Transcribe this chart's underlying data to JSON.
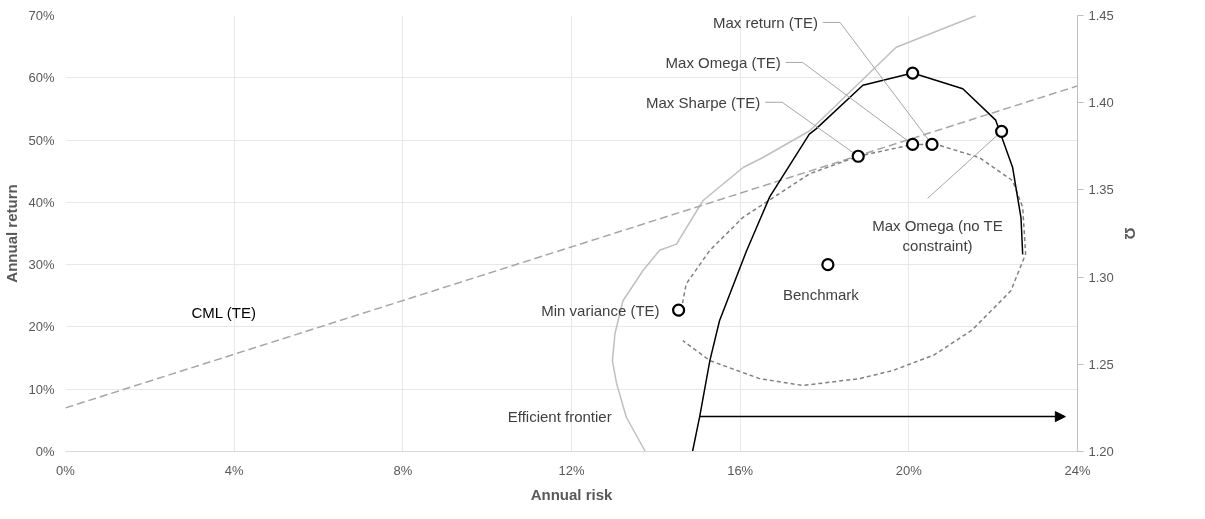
{
  "chart_data": {
    "type": "line",
    "xlabel": "Annual risk",
    "ylabel": "Annual return",
    "y2label": "Ω",
    "xlim": [
      0,
      24
    ],
    "ylim": [
      0,
      70
    ],
    "y2lim": [
      1.2,
      1.45
    ],
    "xticks": [
      {
        "value": 0,
        "label": "0%"
      },
      {
        "value": 4,
        "label": "4%"
      },
      {
        "value": 8,
        "label": "8%"
      },
      {
        "value": 12,
        "label": "12%"
      },
      {
        "value": 16,
        "label": "16%"
      },
      {
        "value": 20,
        "label": "20%"
      },
      {
        "value": 24,
        "label": "24%"
      }
    ],
    "yticks": [
      {
        "value": 0,
        "label": "0%"
      },
      {
        "value": 10,
        "label": "10%"
      },
      {
        "value": 20,
        "label": "20%"
      },
      {
        "value": 30,
        "label": "30%"
      },
      {
        "value": 40,
        "label": "40%"
      },
      {
        "value": 50,
        "label": "50%"
      },
      {
        "value": 60,
        "label": "60%"
      },
      {
        "value": 70,
        "label": "70%"
      }
    ],
    "y2ticks": [
      {
        "value": 1.2,
        "label": "1.20"
      },
      {
        "value": 1.25,
        "label": "1.25"
      },
      {
        "value": 1.3,
        "label": "1.30"
      },
      {
        "value": 1.35,
        "label": "1.35"
      },
      {
        "value": 1.4,
        "label": "1.40"
      },
      {
        "value": 1.45,
        "label": "1.45"
      }
    ],
    "grid": true,
    "legend": false,
    "series": [
      {
        "color": "#bfbfbf",
        "x": [
          13.75,
          13.3,
          13.07,
          12.97,
          13.03,
          13.22,
          13.7,
          14.09,
          14.49,
          15.12,
          16.07,
          16.54,
          17.65,
          19.7,
          21.6
        ],
        "values": [
          0,
          5.5,
          10.9,
          14.6,
          18.9,
          24.2,
          29.1,
          32.3,
          33.3,
          40.3,
          45.6,
          47.2,
          51.5,
          64.9,
          70
        ]
      },
      {
        "name": "CML (TE)",
        "color": "#a6a6a6",
        "line_style": "dashed",
        "x": [
          0,
          24
        ],
        "values": [
          7.0,
          58.7
        ]
      },
      {
        "color": "#808080",
        "line_style": "dotted",
        "x": [
          14.57,
          14.72,
          15.28,
          16.07,
          17.65,
          18.8,
          20.09,
          20.65,
          21.67,
          22.46,
          22.7,
          22.77,
          22.42,
          21.5,
          20.6,
          19.62,
          18.83,
          17.49,
          16.46,
          15.28,
          14.64
        ],
        "values": [
          21.6,
          26.9,
          32.3,
          37.6,
          44.6,
          47.4,
          49.3,
          49.3,
          47.2,
          43.5,
          39.2,
          31.7,
          25.8,
          19.5,
          15.5,
          13.0,
          11.7,
          10.6,
          11.7,
          14.6,
          17.8
        ]
      },
      {
        "axis": "y2",
        "color": "#000000",
        "x": [
          14.87,
          15.04,
          15.28,
          15.51,
          16.15,
          16.7,
          17.64,
          17.8,
          18.91,
          20.09,
          21.28,
          22.06,
          22.46,
          22.66,
          22.7
        ],
        "values": [
          1.2,
          1.22,
          1.252,
          1.275,
          1.315,
          1.346,
          1.382,
          1.385,
          1.41,
          1.417,
          1.408,
          1.39,
          1.363,
          1.334,
          1.313
        ]
      },
      {
        "type": "scatter",
        "color": "#000000",
        "marker": "circle",
        "x": [
          20.55,
          20.09,
          18.8,
          22.2,
          14.54,
          18.08
        ],
        "values": [
          49.3,
          49.3,
          47.4,
          51.4,
          22.7,
          30.0
        ]
      },
      {
        "type": "scatter",
        "axis": "y2",
        "color": "#000000",
        "marker": "circle",
        "x": [
          20.09
        ],
        "values": [
          1.417
        ]
      }
    ],
    "annotations": [
      {
        "text": "Max return (TE)",
        "x": 20.55,
        "y": 49.3
      },
      {
        "text": "Max Omega (TE)",
        "x": 20.09,
        "y": 49.3
      },
      {
        "text": "Max Sharpe (TE)",
        "x": 18.8,
        "y": 47.4
      },
      {
        "text": "Max Omega (no TE constraint)",
        "x": 22.2,
        "y": 51.4
      },
      {
        "text": "Min variance (TE)",
        "x": 14.54,
        "y": 22.7
      },
      {
        "text": "Benchmark",
        "x": 18.08,
        "y": 30.0
      },
      "Efficient frontier"
    ]
  }
}
